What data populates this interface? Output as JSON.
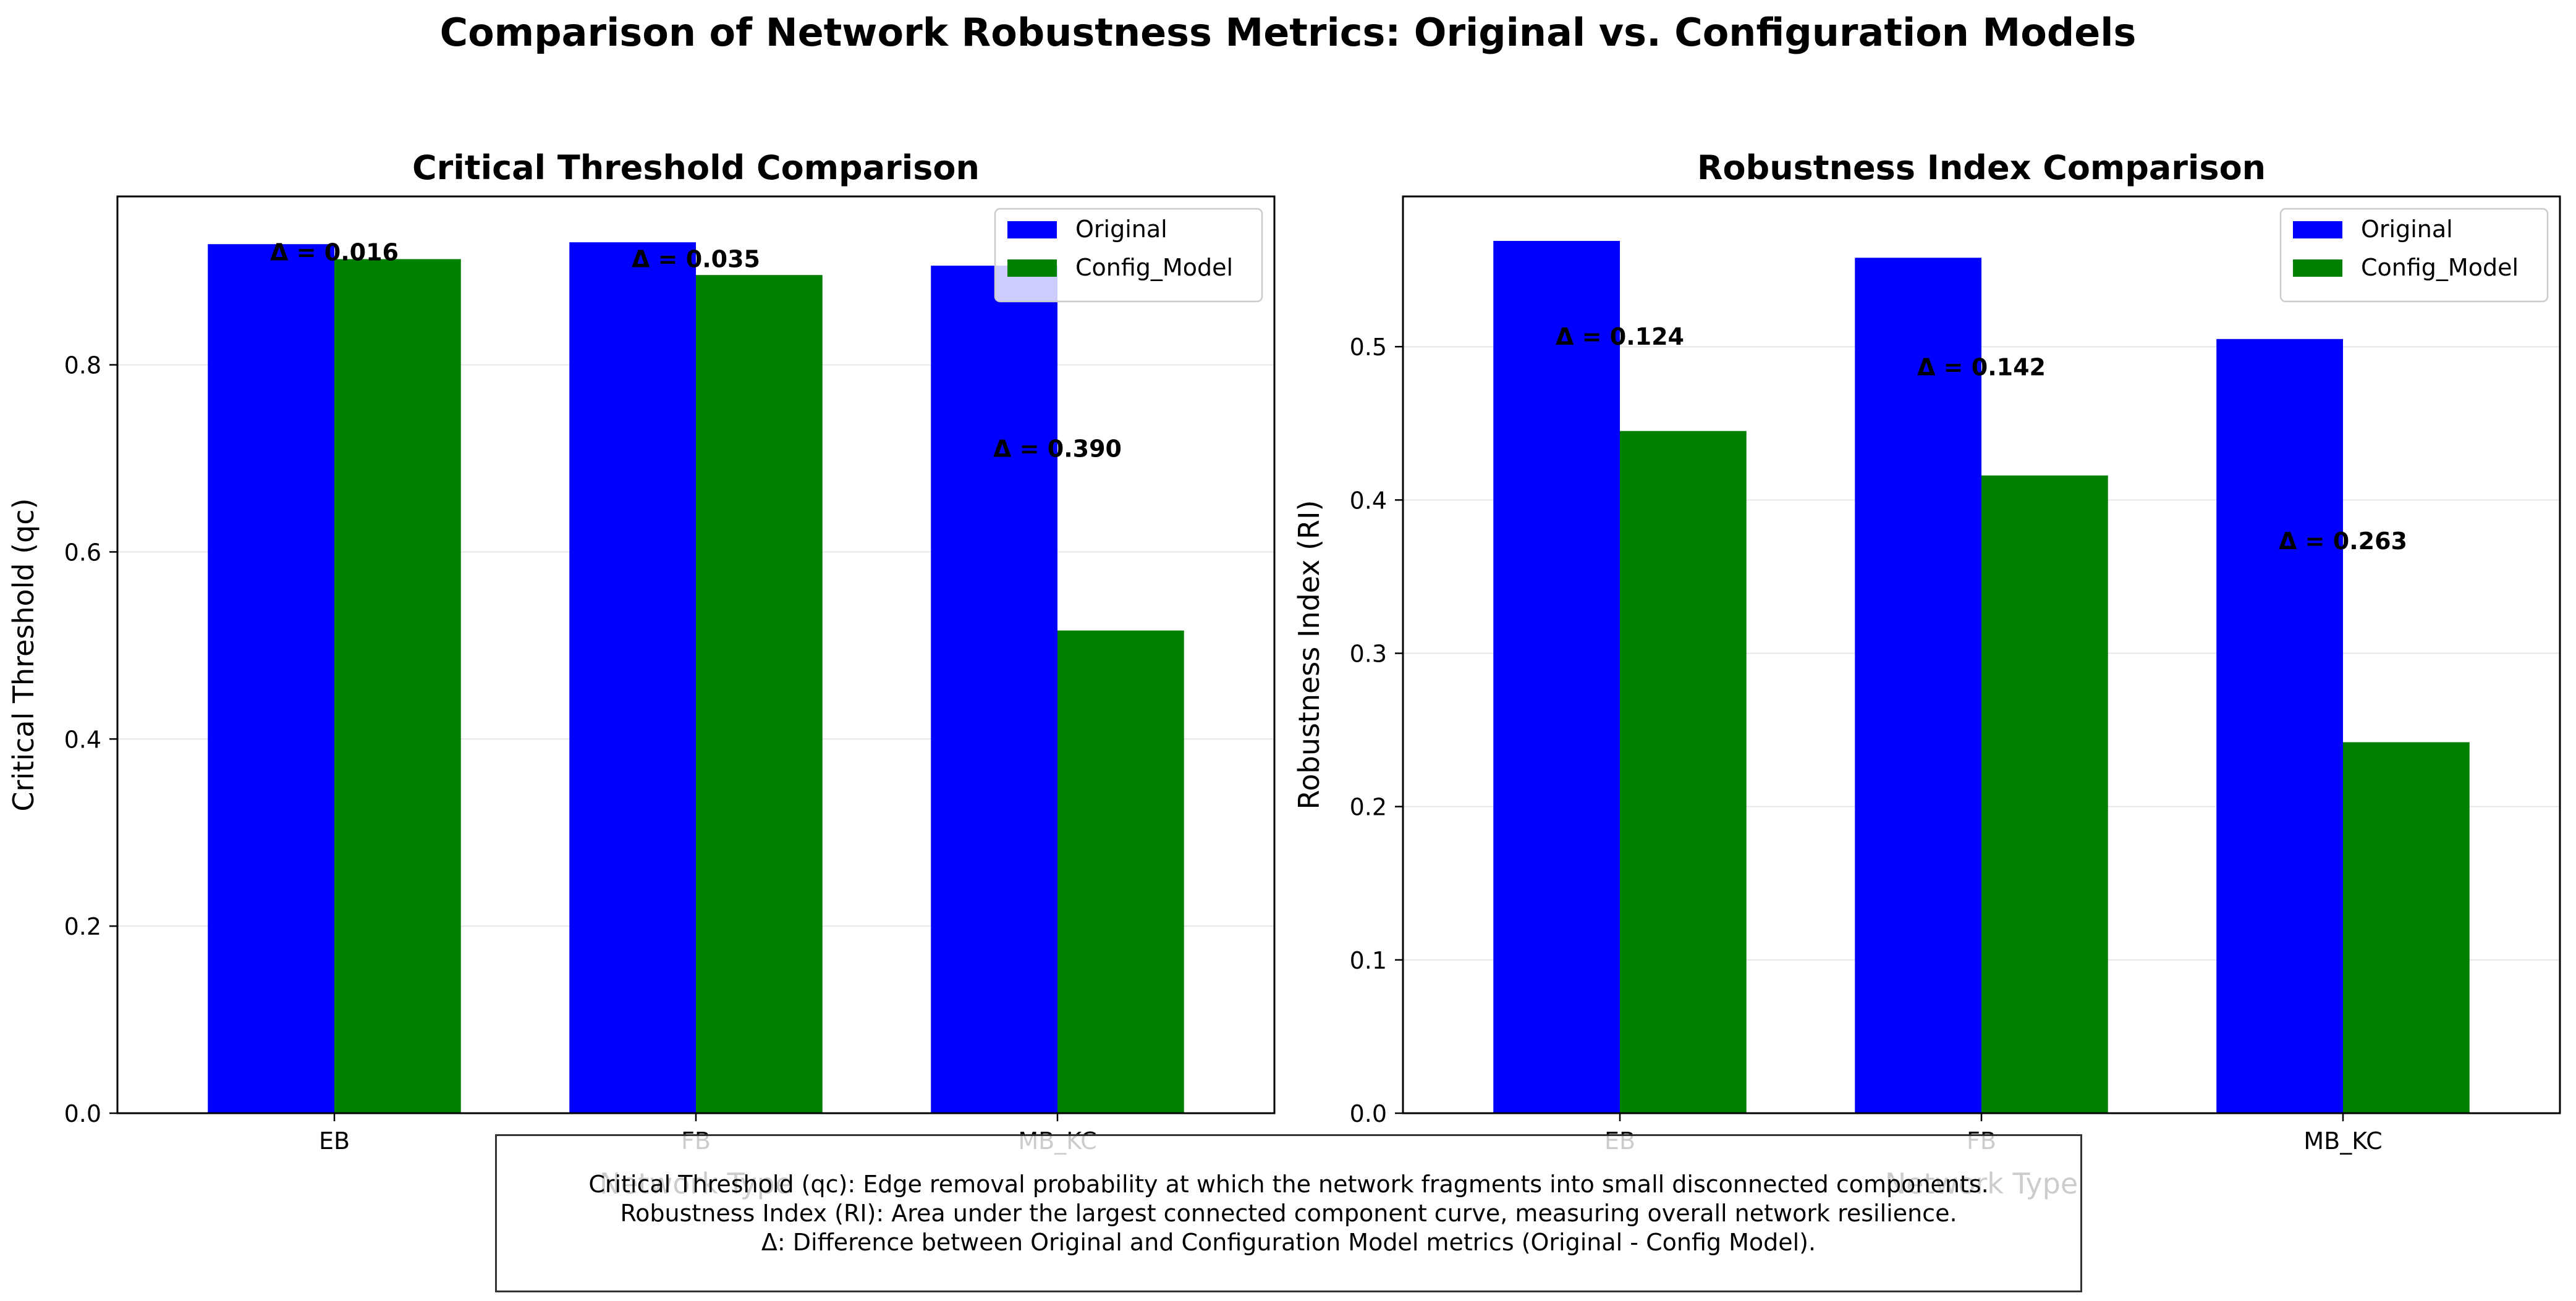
{
  "figure_title": "Comparison of Network Robustness Metrics: Original vs. Configuration Models",
  "colors": {
    "original": "#0000ff",
    "config_model": "#008000",
    "grid": "#e6e6e6",
    "axis": "#000000"
  },
  "chart_data": [
    {
      "type": "bar",
      "title": "Critical Threshold Comparison",
      "xlabel": "Network Type",
      "ylabel": "Critical Threshold (qc)",
      "categories": [
        "EB",
        "FB",
        "MB_KC"
      ],
      "series": [
        {
          "name": "Original",
          "values": [
            0.929,
            0.931,
            0.906
          ]
        },
        {
          "name": "Config_Model",
          "values": [
            0.913,
            0.896,
            0.516
          ]
        }
      ],
      "annotations": [
        "Δ = 0.016",
        "Δ = 0.035",
        "Δ = 0.390"
      ],
      "ylim": [
        0,
        0.98
      ],
      "yticks": [
        "0.0",
        "0.2",
        "0.4",
        "0.6",
        "0.8"
      ],
      "grid": "y",
      "legend": "top-right"
    },
    {
      "type": "bar",
      "title": "Robustness Index Comparison",
      "xlabel": "Network Type",
      "ylabel": "Robustness Index (RI)",
      "categories": [
        "EB",
        "FB",
        "MB_KC"
      ],
      "series": [
        {
          "name": "Original",
          "values": [
            0.569,
            0.558,
            0.505
          ]
        },
        {
          "name": "Config_Model",
          "values": [
            0.445,
            0.416,
            0.242
          ]
        }
      ],
      "annotations": [
        "Δ = 0.124",
        "Δ = 0.142",
        "Δ = 0.263"
      ],
      "ylim": [
        0,
        0.598
      ],
      "yticks": [
        "0.0",
        "0.1",
        "0.2",
        "0.3",
        "0.4",
        "0.5"
      ],
      "grid": "y",
      "legend": "top-right"
    }
  ],
  "notes": [
    "Critical Threshold (qc): Edge removal probability at which the network fragments into small disconnected components.",
    "Robustness Index (RI): Area under the largest connected component curve, measuring overall network resilience.",
    "Δ: Difference between Original and Configuration Model metrics (Original - Config Model)."
  ]
}
